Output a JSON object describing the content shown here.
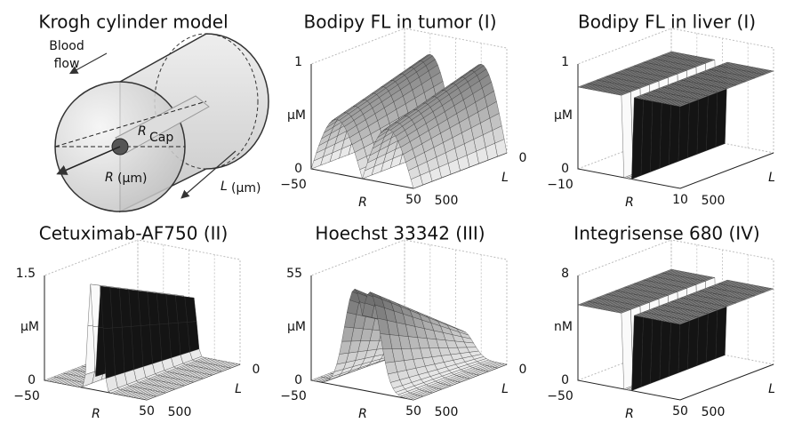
{
  "panels": [
    {
      "title": "Krogh  cylinder model",
      "flow_1": "Blood",
      "flow_2": "flow",
      "r_cap": "R",
      "r_cap_sub": "Cap",
      "r": "R",
      "r_unit": "(µm)",
      "l": "L",
      "l_unit": "(µm)"
    },
    {
      "title": "Bodipy FL in tumor (I)",
      "y_top": "1",
      "y_bottom": "0",
      "y_unit": "µM",
      "r_min": "−50",
      "r_label": "R",
      "r_max": "50",
      "l_max": "500",
      "l_label": "L",
      "l_min": "0"
    },
    {
      "title": "Bodipy FL in liver (I)",
      "y_top": "1",
      "y_bottom": "0",
      "y_unit": "µM",
      "r_min": "−10",
      "r_label": "R",
      "r_max": "10",
      "l_max": "500",
      "l_label": "L"
    },
    {
      "title": "Cetuximab-AF750 (II)",
      "y_top": "1.5",
      "y_bottom": "0",
      "y_unit": "µM",
      "r_min": "−50",
      "r_label": "R",
      "r_max": "50",
      "l_max": "500",
      "l_label": "L",
      "l_min": "0"
    },
    {
      "title": "Hoechst 33342 (III)",
      "y_top": "55",
      "y_bottom": "0",
      "y_unit": "µM",
      "r_min": "−50",
      "r_label": "R",
      "r_max": "50",
      "l_max": "500",
      "l_label": "L",
      "l_min": "0"
    },
    {
      "title": "Integrisense 680 (IV)",
      "y_top": "8",
      "y_bottom": "0",
      "y_unit": "nM",
      "r_min": "−50",
      "r_label": "R",
      "r_max": "50",
      "l_max": "500",
      "l_label": "L"
    }
  ]
}
